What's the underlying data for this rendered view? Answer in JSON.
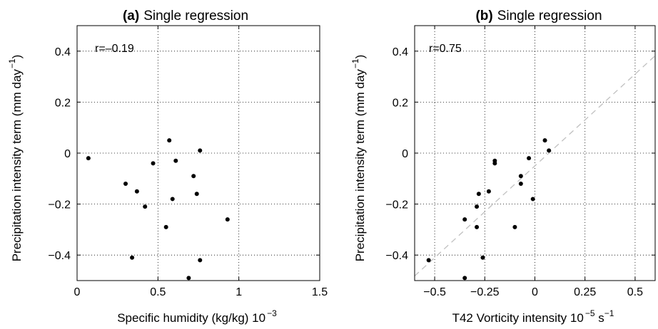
{
  "chart_data": [
    {
      "type": "scatter",
      "panel_label": "(a)",
      "title": "Single regression",
      "annotation": "r=–0.19",
      "xlabel": "Specific humidity (kg/kg) 10",
      "xlabel_sup": "−3",
      "ylabel": "Precipitation intensity term (mm day",
      "ylabel_sup": "−1",
      "ylabel_end": ")",
      "xlim": [
        0,
        1.5
      ],
      "ylim": [
        -0.5,
        0.5
      ],
      "xticks": [
        0,
        0.5,
        1,
        1.5
      ],
      "xtick_labels": [
        "0",
        "0.5",
        "1",
        "1.5"
      ],
      "yticks": [
        -0.4,
        -0.2,
        0,
        0.2,
        0.4
      ],
      "ytick_labels": [
        "−0.4",
        "−0.2",
        "0",
        "0.2",
        "0.4"
      ],
      "grid": true,
      "points": [
        {
          "x": 0.07,
          "y": -0.02
        },
        {
          "x": 0.3,
          "y": -0.12
        },
        {
          "x": 0.34,
          "y": -0.41
        },
        {
          "x": 0.37,
          "y": -0.15
        },
        {
          "x": 0.42,
          "y": -0.21
        },
        {
          "x": 0.47,
          "y": -0.04
        },
        {
          "x": 0.55,
          "y": -0.29
        },
        {
          "x": 0.57,
          "y": 0.05
        },
        {
          "x": 0.59,
          "y": -0.18
        },
        {
          "x": 0.61,
          "y": -0.03
        },
        {
          "x": 0.69,
          "y": -0.49
        },
        {
          "x": 0.72,
          "y": -0.09
        },
        {
          "x": 0.74,
          "y": -0.16
        },
        {
          "x": 0.76,
          "y": 0.01
        },
        {
          "x": 0.76,
          "y": -0.42
        },
        {
          "x": 0.93,
          "y": -0.26
        }
      ]
    },
    {
      "type": "scatter",
      "panel_label": "(b)",
      "title": "Single regression",
      "annotation": "r=0.75",
      "xlabel": "T42 Vorticity intensity 10",
      "xlabel_sup": "−5",
      "xlabel_end": " s",
      "xlabel_sup2": "−1",
      "ylabel": "Precipitation intensity term (mm day",
      "ylabel_sup": "−1",
      "ylabel_end": ")",
      "xlim": [
        -0.6,
        0.6
      ],
      "ylim": [
        -0.5,
        0.5
      ],
      "xticks": [
        -0.5,
        -0.25,
        0,
        0.25,
        0.5
      ],
      "xtick_labels": [
        "−0.5",
        "−0.25",
        "0",
        "0.25",
        "0.5"
      ],
      "yticks": [
        -0.4,
        -0.2,
        0,
        0.2,
        0.4
      ],
      "ytick_labels": [
        "−0.4",
        "−0.2",
        "0",
        "0.2",
        "0.4"
      ],
      "grid": true,
      "regression_line": {
        "slope": 0.72,
        "intercept": -0.05,
        "color": "#c0c0c0",
        "style": "dashed"
      },
      "points": [
        {
          "x": -0.53,
          "y": -0.42
        },
        {
          "x": -0.35,
          "y": -0.26
        },
        {
          "x": -0.35,
          "y": -0.49
        },
        {
          "x": -0.29,
          "y": -0.29
        },
        {
          "x": -0.29,
          "y": -0.21
        },
        {
          "x": -0.28,
          "y": -0.16
        },
        {
          "x": -0.26,
          "y": -0.41
        },
        {
          "x": -0.23,
          "y": -0.15
        },
        {
          "x": -0.2,
          "y": -0.04
        },
        {
          "x": -0.2,
          "y": -0.03
        },
        {
          "x": -0.1,
          "y": -0.29
        },
        {
          "x": -0.07,
          "y": -0.09
        },
        {
          "x": -0.07,
          "y": -0.12
        },
        {
          "x": -0.03,
          "y": -0.02
        },
        {
          "x": -0.01,
          "y": -0.18
        },
        {
          "x": 0.05,
          "y": 0.05
        },
        {
          "x": 0.07,
          "y": 0.01
        }
      ]
    }
  ]
}
